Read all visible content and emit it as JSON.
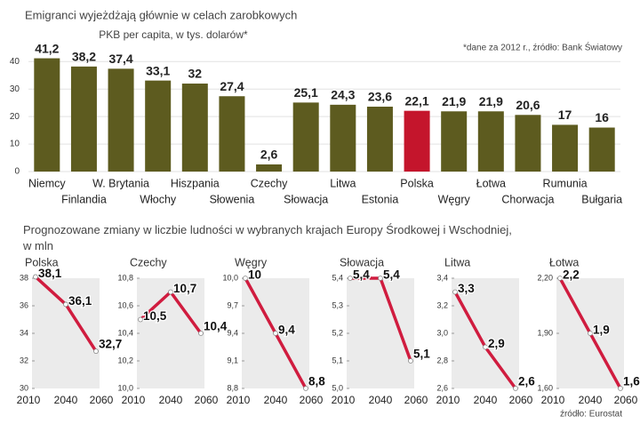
{
  "chart_data": [
    {
      "type": "bar",
      "title": "Emigranci wyjeżdżają głównie w celach zarobkowych",
      "subtitle": "PKB per capita, w tys. dolarów*",
      "note": "*dane za 2012 r., źródło: Bank Światowy",
      "categories": [
        "Niemcy",
        "Finlandia",
        "W. Brytania",
        "Włochy",
        "Hiszpania",
        "Słowenia",
        "Czechy",
        "Słowacja",
        "Litwa",
        "Estonia",
        "Polska",
        "Węgry",
        "Łotwa",
        "Chorwacja",
        "Rumunia",
        "Bułgaria"
      ],
      "values": [
        41.2,
        38.2,
        37.4,
        33.1,
        32,
        27.4,
        2.6,
        25.1,
        24.3,
        23.6,
        22.1,
        21.9,
        21.9,
        20.6,
        17,
        16
      ],
      "value_labels": [
        "41,2",
        "38,2",
        "37,4",
        "33,1",
        "32",
        "27,4",
        "2,6",
        "25,1",
        "24,3",
        "23,6",
        "22,1",
        "21,9",
        "21,9",
        "20,6",
        "17",
        "16"
      ],
      "colors": [
        "#5d5b1f",
        "#5d5b1f",
        "#5d5b1f",
        "#5d5b1f",
        "#5d5b1f",
        "#5d5b1f",
        "#5d5b1f",
        "#5d5b1f",
        "#5d5b1f",
        "#5d5b1f",
        "#c4152c",
        "#5d5b1f",
        "#5d5b1f",
        "#5d5b1f",
        "#5d5b1f",
        "#5d5b1f"
      ],
      "ylim": [
        0,
        43
      ],
      "yticks": [
        0,
        10,
        20,
        30,
        40
      ],
      "grid": true
    },
    {
      "type": "line",
      "title": "Polska",
      "categories": [
        "2010",
        "2040",
        "2060"
      ],
      "values": [
        38.1,
        36.1,
        32.7
      ],
      "value_labels": [
        "38,1",
        "36,1",
        "32,7"
      ],
      "color": "#d01c3f",
      "ylim": [
        30,
        38
      ],
      "yticks": [
        30,
        32,
        34,
        36,
        38
      ]
    },
    {
      "type": "line",
      "title": "Czechy",
      "categories": [
        "2010",
        "2040",
        "2060"
      ],
      "values": [
        10.5,
        10.7,
        10.4
      ],
      "value_labels": [
        "10,5",
        "10,7",
        "10,4"
      ],
      "color": "#d01c3f",
      "ylim": [
        10.0,
        10.8
      ],
      "yticks": [
        {
          "value": 10.0,
          "label": "10,0"
        },
        {
          "value": 10.2,
          "label": "10,2"
        },
        {
          "value": 10.4,
          "label": "10,4"
        },
        {
          "value": 10.6,
          "label": "10,6"
        },
        {
          "value": 10.8,
          "label": "10,8"
        }
      ]
    },
    {
      "type": "line",
      "title": "Węgry",
      "categories": [
        "2010",
        "2040",
        "2060"
      ],
      "values": [
        10,
        9.4,
        8.8
      ],
      "value_labels": [
        "10",
        "9,4",
        "8,8"
      ],
      "color": "#d01c3f",
      "ylim": [
        8.8,
        10.0
      ],
      "yticks": [
        {
          "value": 8.8,
          "label": "8,8"
        },
        {
          "value": 9.1,
          "label": "9,1"
        },
        {
          "value": 9.4,
          "label": "9,4"
        },
        {
          "value": 9.7,
          "label": "9,7"
        },
        {
          "value": 10.0,
          "label": "10,0"
        }
      ]
    },
    {
      "type": "line",
      "title": "Słowacja",
      "categories": [
        "2010",
        "2040",
        "2060"
      ],
      "values": [
        5.4,
        5.4,
        5.1
      ],
      "value_labels": [
        "5,4",
        "5,4",
        "5,1"
      ],
      "color": "#d01c3f",
      "ylim": [
        5.0,
        5.4
      ],
      "yticks": [
        {
          "value": 5.0,
          "label": "5,0"
        },
        {
          "value": 5.1,
          "label": "5,1"
        },
        {
          "value": 5.2,
          "label": "5,2"
        },
        {
          "value": 5.3,
          "label": "5,3"
        },
        {
          "value": 5.4,
          "label": "5,4"
        }
      ]
    },
    {
      "type": "line",
      "title": "Litwa",
      "categories": [
        "2010",
        "2040",
        "2060"
      ],
      "values": [
        3.3,
        2.9,
        2.6
      ],
      "value_labels": [
        "3,3",
        "2,9",
        "2,6"
      ],
      "color": "#d01c3f",
      "ylim": [
        2.6,
        3.4
      ],
      "yticks": [
        {
          "value": 2.6,
          "label": "2,6"
        },
        {
          "value": 2.8,
          "label": "2,8"
        },
        {
          "value": 3.0,
          "label": "3,0"
        },
        {
          "value": 3.2,
          "label": "3,2"
        },
        {
          "value": 3.4,
          "label": "3,4"
        }
      ]
    },
    {
      "type": "line",
      "title": "Łotwa",
      "categories": [
        "2010",
        "2040",
        "2060"
      ],
      "values": [
        2.2,
        1.9,
        1.6
      ],
      "value_labels": [
        "2,2",
        "1,9",
        "1,6"
      ],
      "color": "#d01c3f",
      "ylim": [
        1.6,
        2.2
      ],
      "yticks": [
        {
          "value": 1.6,
          "label": "1,60"
        },
        {
          "value": 1.9,
          "label": "1,90"
        },
        {
          "value": 2.2,
          "label": "2,20"
        }
      ]
    }
  ],
  "section_title": "Prognozowane zmiany w liczbie ludności w wybranych krajach Europy Środkowej i Wschodniej, w mln",
  "source": "źródło: Eurostat"
}
